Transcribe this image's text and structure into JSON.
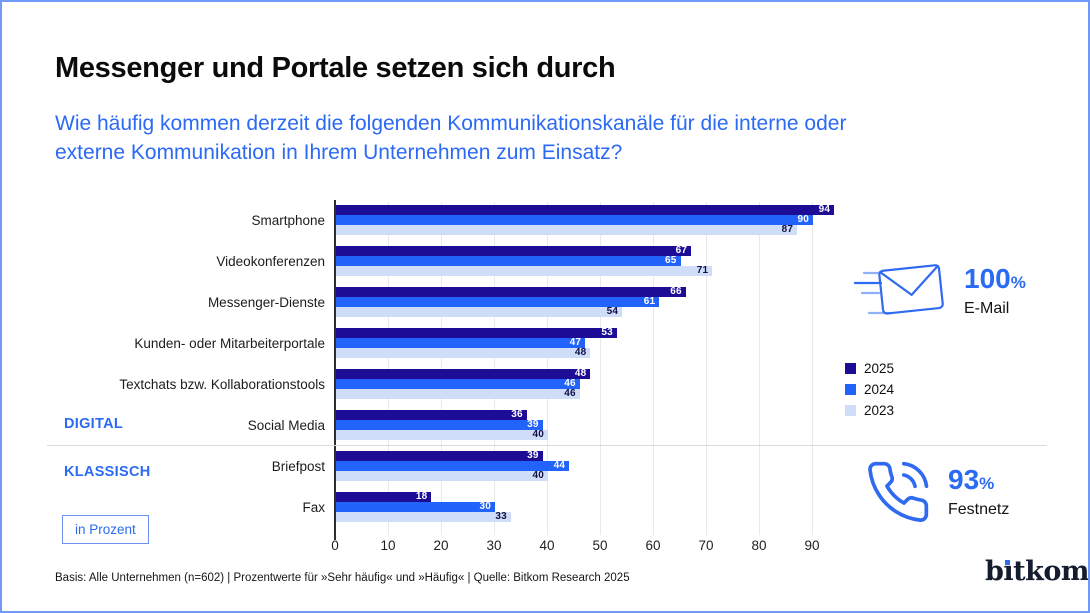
{
  "header": {
    "title": "Messenger und Portale setzen sich durch",
    "subtitle_lines": [
      "Wie häufig kommen derzeit die folgenden Kommunikationskanäle für die interne oder",
      "externe Kommunikation in Ihrem Unternehmen zum Einsatz?"
    ]
  },
  "chart_data": {
    "type": "bar",
    "orientation": "horizontal",
    "title": "Messenger und Portale setzen sich durch",
    "unit": "Prozent",
    "categories": [
      "Smartphone",
      "Videokonferenzen",
      "Messenger-Dienste",
      "Kunden- oder Mitarbeiterportale",
      "Textchats bzw. Kollaborationstools",
      "Social Media",
      "Briefpost",
      "Fax"
    ],
    "series": [
      {
        "name": "2025",
        "color": "#1c0c96",
        "value_label_color": "#ffffff",
        "values": [
          94,
          67,
          66,
          53,
          48,
          36,
          39,
          18
        ]
      },
      {
        "name": "2024",
        "color": "#2163fb",
        "value_label_color": "#ffffff",
        "values": [
          90,
          65,
          61,
          47,
          46,
          39,
          44,
          30
        ]
      },
      {
        "name": "2023",
        "color": "#d0ddf8",
        "value_label_color": "#101045",
        "values": [
          87,
          71,
          54,
          48,
          46,
          40,
          40,
          33
        ]
      }
    ],
    "x_ticks": [
      0,
      10,
      20,
      30,
      40,
      50,
      60,
      70,
      80,
      90
    ],
    "xlim": [
      0,
      96
    ],
    "grid": "vertical",
    "legend_position": "right",
    "sections": [
      {
        "label": "DIGITAL",
        "categories": [
          "Smartphone",
          "Videokonferenzen",
          "Messenger-Dienste",
          "Kunden- oder Mitarbeiterportale",
          "Textchats bzw. Kollaborationstools",
          "Social Media"
        ]
      },
      {
        "label": "KLASSISCH",
        "categories": [
          "Briefpost",
          "Fax"
        ]
      }
    ],
    "annotations": [
      {
        "label": "E-Mail",
        "value": 100,
        "unit": "%"
      },
      {
        "label": "Festnetz",
        "value": 93,
        "unit": "%"
      }
    ]
  },
  "section_labels": {
    "digital": "DIGITAL",
    "klassisch": "KLASSISCH"
  },
  "unit_badge": "in Prozent",
  "stats": {
    "email": {
      "value": "100",
      "unit": "%",
      "label": "E-Mail"
    },
    "phone": {
      "value": "93",
      "unit": "%",
      "label": "Festnetz"
    }
  },
  "footer": {
    "note": "Basis: Alle Unternehmen (n=602) | Prozentwerte für »Sehr häufig« und »Häufig« | Quelle: Bitkom Research 2025",
    "logo": "bitkom"
  },
  "colors": {
    "accent_blue": "#2b6af5",
    "frame_border": "#7099f8",
    "grid": "#e9e9e9",
    "axis": "#2e2e2e",
    "divider": "#dadada"
  }
}
